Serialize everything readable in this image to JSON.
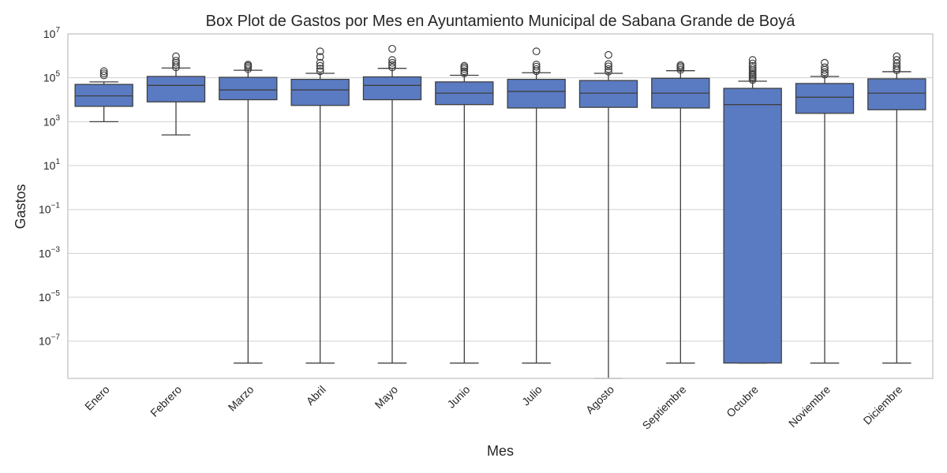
{
  "chart_data": {
    "type": "box",
    "title": "Box Plot de Gastos por Mes en Ayuntamiento Municipal de Sabana Grande de Boyá",
    "xlabel": "Mes",
    "ylabel": "Gastos",
    "yscale": "log",
    "ylim": [
      2e-09,
      10000000.0
    ],
    "yticks": [
      {
        "value": 10000000.0,
        "base": "10",
        "exp": "7"
      },
      {
        "value": 100000.0,
        "base": "10",
        "exp": "5"
      },
      {
        "value": 1000.0,
        "base": "10",
        "exp": "3"
      },
      {
        "value": 10.0,
        "base": "10",
        "exp": "1"
      },
      {
        "value": 0.1,
        "base": "10",
        "exp": "−1"
      },
      {
        "value": 0.001,
        "base": "10",
        "exp": "−3"
      },
      {
        "value": 1e-05,
        "base": "10",
        "exp": "−5"
      },
      {
        "value": 1e-07,
        "base": "10",
        "exp": "−7"
      }
    ],
    "grid": true,
    "box_color": "#5a7bc2",
    "line_color": "#3f3f3f",
    "categories": [
      "Enero",
      "Febrero",
      "Marzo",
      "Abril",
      "Mayo",
      "Junio",
      "Julio",
      "Agosto",
      "Septiembre",
      "Octubre",
      "Noviembre",
      "Diciembre"
    ],
    "boxes": [
      {
        "whislo": 1000,
        "q1": 5000,
        "med": 15000,
        "q3": 50000,
        "whishi": 65000,
        "fliers": [
          130000,
          160000,
          200000
        ]
      },
      {
        "whislo": 250,
        "q1": 8000,
        "med": 45000,
        "q3": 115000,
        "whishi": 280000,
        "fliers": [
          300000,
          380000,
          480000,
          600000,
          950000
        ]
      },
      {
        "whislo": 1e-08,
        "q1": 10000,
        "med": 28000,
        "q3": 105000,
        "whishi": 220000,
        "fliers": [
          250000,
          300000,
          350000,
          400000
        ]
      },
      {
        "whislo": 1e-08,
        "q1": 5500,
        "med": 28000,
        "q3": 85000,
        "whishi": 160000,
        "fliers": [
          200000,
          260000,
          350000,
          480000,
          900000,
          1600000
        ]
      },
      {
        "whislo": 1e-08,
        "q1": 10000,
        "med": 45000,
        "q3": 110000,
        "whishi": 270000,
        "fliers": [
          300000,
          380000,
          480000,
          650000,
          2100000
        ]
      },
      {
        "whislo": 1e-08,
        "q1": 6000,
        "med": 20000,
        "q3": 65000,
        "whishi": 130000,
        "fliers": [
          160000,
          200000,
          250000,
          300000,
          350000
        ]
      },
      {
        "whislo": 1e-08,
        "q1": 4200,
        "med": 24000,
        "q3": 85000,
        "whishi": 170000,
        "fliers": [
          200000,
          250000,
          320000,
          400000,
          1600000
        ]
      },
      {
        "whislo": 2e-09,
        "q1": 4500,
        "med": 20000,
        "q3": 75000,
        "whishi": 160000,
        "fliers": [
          190000,
          250000,
          330000,
          420000,
          1100000
        ]
      },
      {
        "whislo": 1e-08,
        "q1": 4200,
        "med": 20000,
        "q3": 95000,
        "whishi": 210000,
        "fliers": [
          230000,
          280000,
          330000,
          380000
        ]
      },
      {
        "whislo": 1e-08,
        "q1": 1e-08,
        "med": 6000,
        "q3": 33000,
        "whishi": 70000,
        "fliers": [
          80000,
          95000,
          110000,
          130000,
          150000,
          180000,
          220000,
          280000,
          350000,
          450000,
          650000
        ]
      },
      {
        "whislo": 1e-08,
        "q1": 2400,
        "med": 13000,
        "q3": 55000,
        "whishi": 115000,
        "fliers": [
          140000,
          180000,
          230000,
          300000,
          480000
        ]
      },
      {
        "whislo": 1e-08,
        "q1": 3500,
        "med": 20000,
        "q3": 90000,
        "whishi": 190000,
        "fliers": [
          220000,
          270000,
          340000,
          450000,
          650000,
          950000
        ]
      }
    ]
  }
}
